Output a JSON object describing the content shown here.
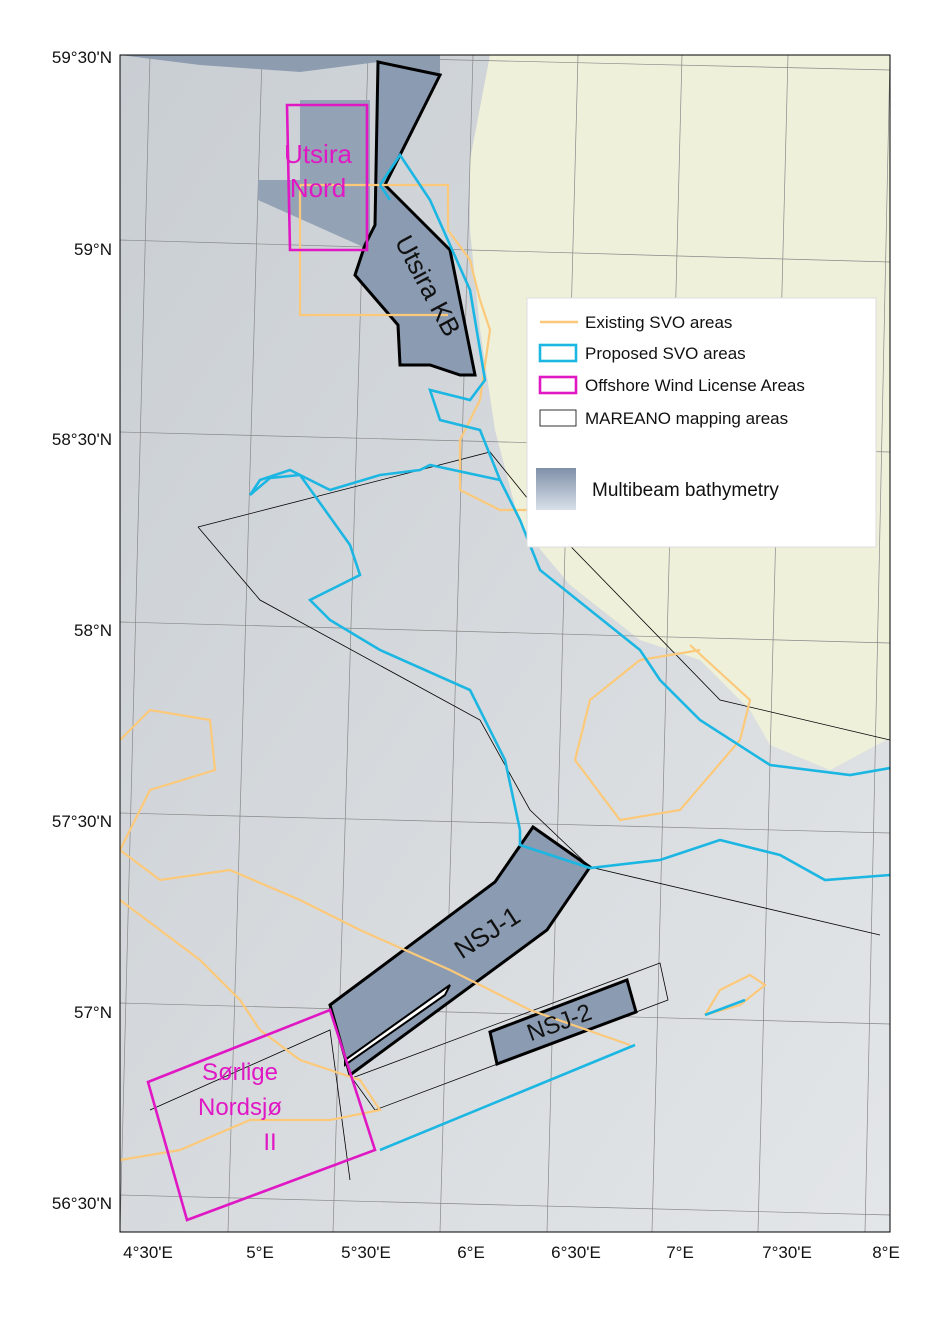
{
  "map": {
    "lat_labels": [
      "59°30'N",
      "59°N",
      "58°30'N",
      "58°N",
      "57°30'N",
      "57°N",
      "56°30'N"
    ],
    "lon_labels": [
      "4°30'E",
      "5°E",
      "5°30'E",
      "6°E",
      "6°30'E",
      "7°E",
      "7°30'E",
      "8°E"
    ],
    "areas": {
      "utsira_nord": [
        "Utsira",
        "Nord"
      ],
      "utsira_kb": "Utsira KB",
      "nsj1": "NSJ-1",
      "nsj2": "NSJ-2",
      "sorlige": [
        "Sørlige",
        "Nordsjø",
        "II"
      ]
    },
    "legend": [
      "Existing SVO areas",
      "Proposed SVO areas",
      "Offshore Wind License Areas",
      "MAREANO mapping areas",
      "Multibeam bathymetry"
    ]
  }
}
